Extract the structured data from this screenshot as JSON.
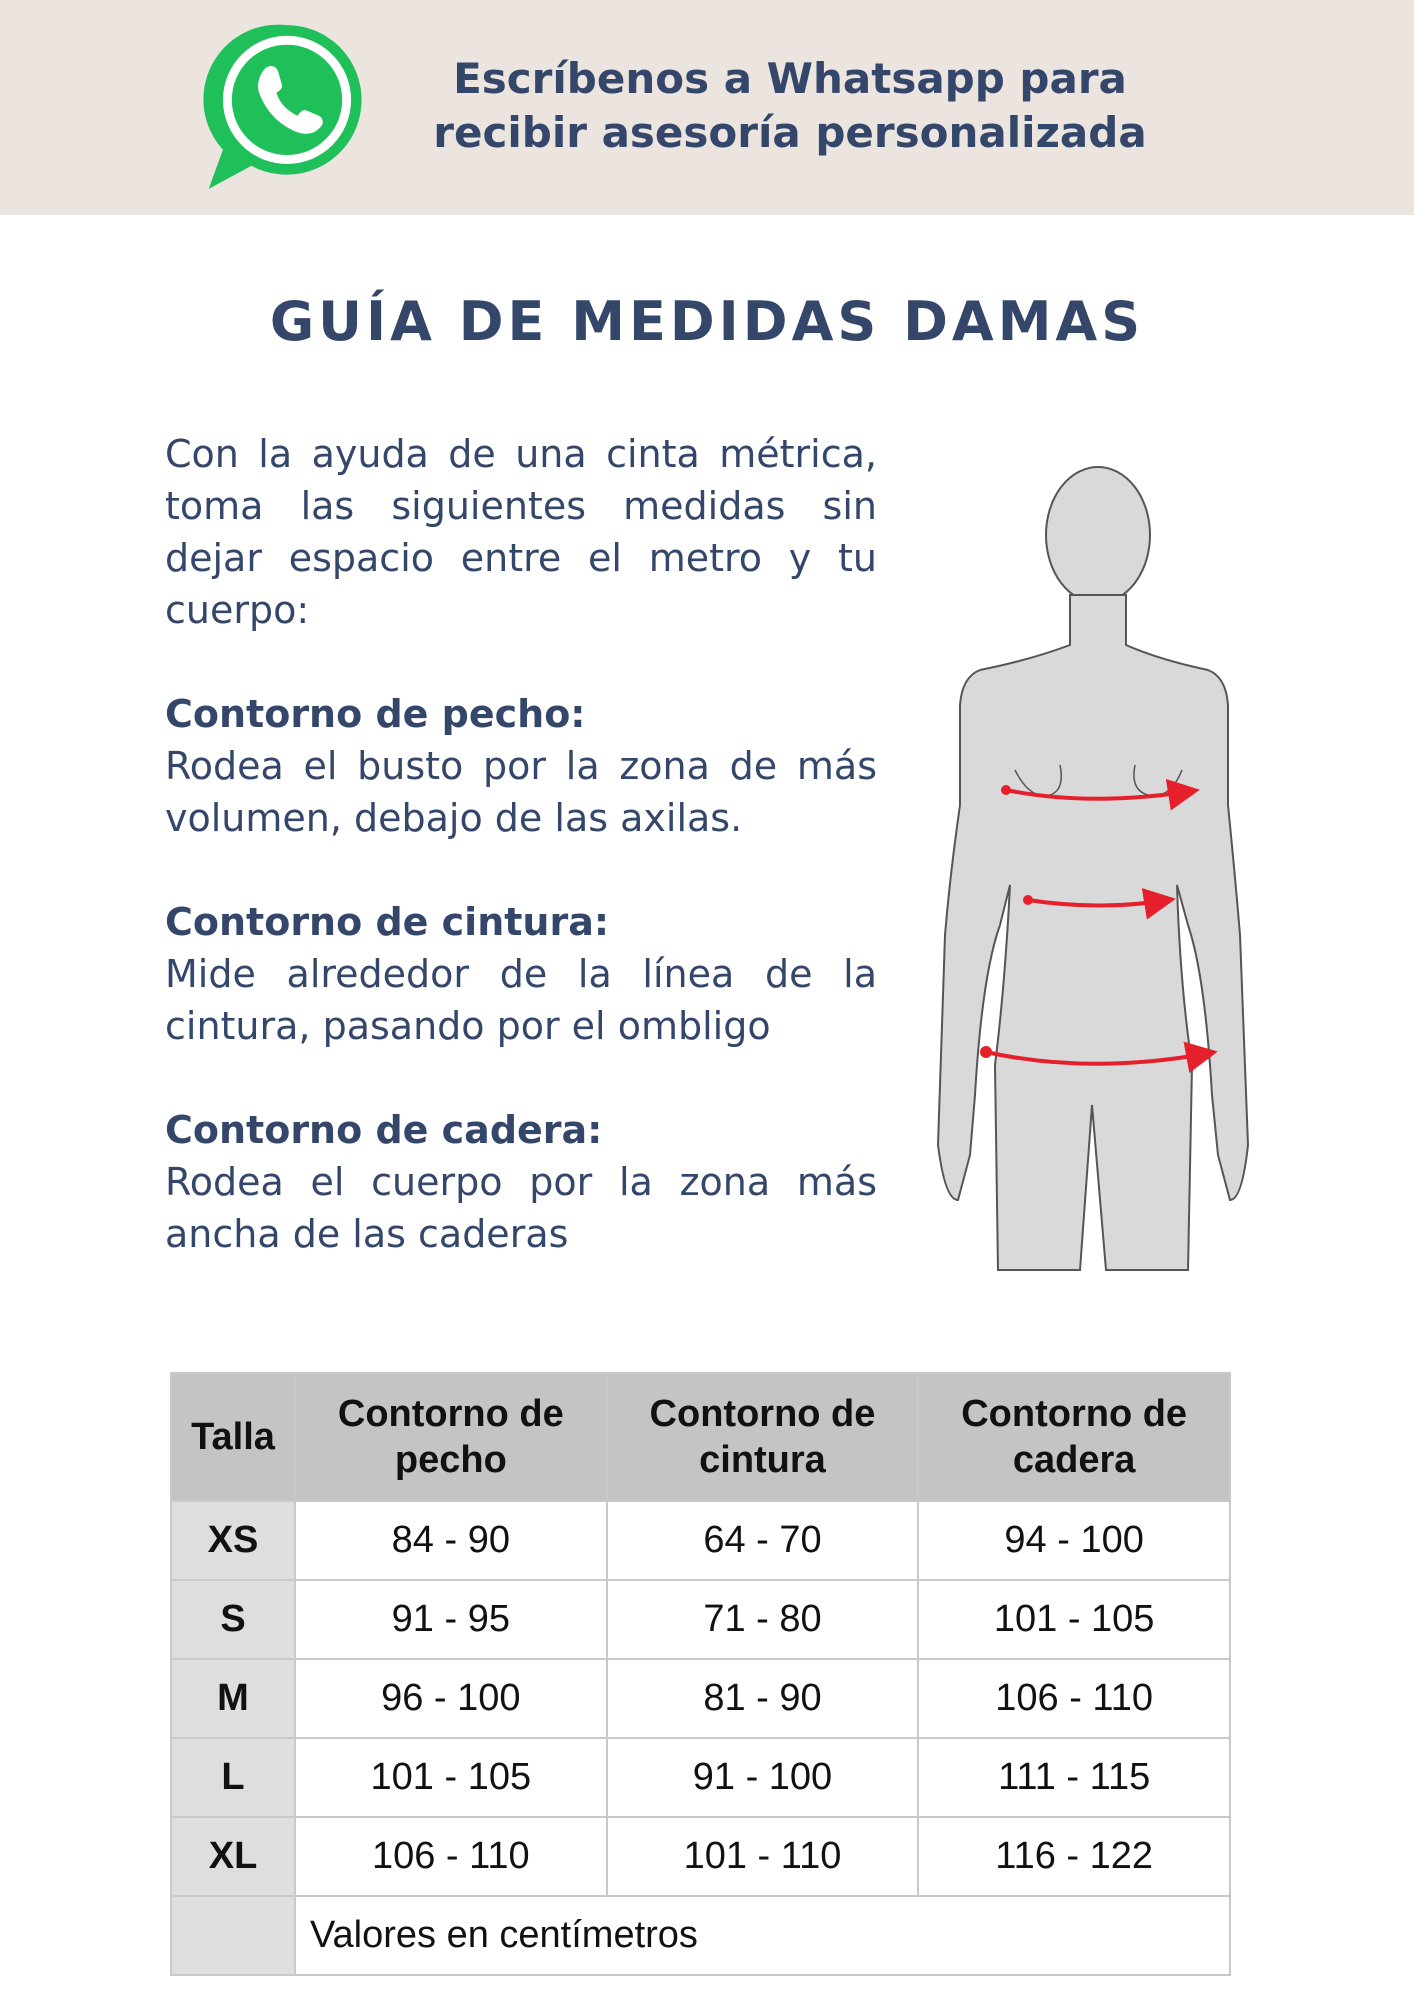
{
  "banner": {
    "icon": "whatsapp-icon",
    "line1": "Escríbenos a Whatsapp para",
    "line2": "recibir asesoría personalizada",
    "icon_color": "#1fbf5a"
  },
  "title": "GUÍA DE MEDIDAS DAMAS",
  "intro": "Con la ayuda de una cinta métrica, toma las siguientes medidas sin dejar espacio entre el metro y tu cuerpo:",
  "sections": [
    {
      "heading": "Contorno de pecho:",
      "text": "Rodea el busto por la zona de más volumen, debajo de las axilas."
    },
    {
      "heading": "Contorno de cintura:",
      "text": "Mide alrededor de la línea de la cintura, pasando por el ombligo"
    },
    {
      "heading": "Contorno de cadera:",
      "text": "Rodea el cuerpo por la zona más ancha de las caderas"
    }
  ],
  "table": {
    "headers": [
      [
        "Talla"
      ],
      [
        "Contorno de",
        "pecho"
      ],
      [
        "Contorno de",
        "cintura"
      ],
      [
        "Contorno de",
        "cadera"
      ]
    ],
    "rows": [
      [
        "XS",
        "84 - 90",
        "64 - 70",
        "94 - 100"
      ],
      [
        "S",
        "91 - 95",
        "71 - 80",
        "101 - 105"
      ],
      [
        "M",
        "96 - 100",
        "81 - 90",
        "106 - 110"
      ],
      [
        "L",
        "101 - 105",
        "91 - 100",
        "111 - 115"
      ],
      [
        "XL",
        "106 - 110",
        "101 - 110",
        "116 - 122"
      ]
    ],
    "note": "Valores en centímetros"
  }
}
